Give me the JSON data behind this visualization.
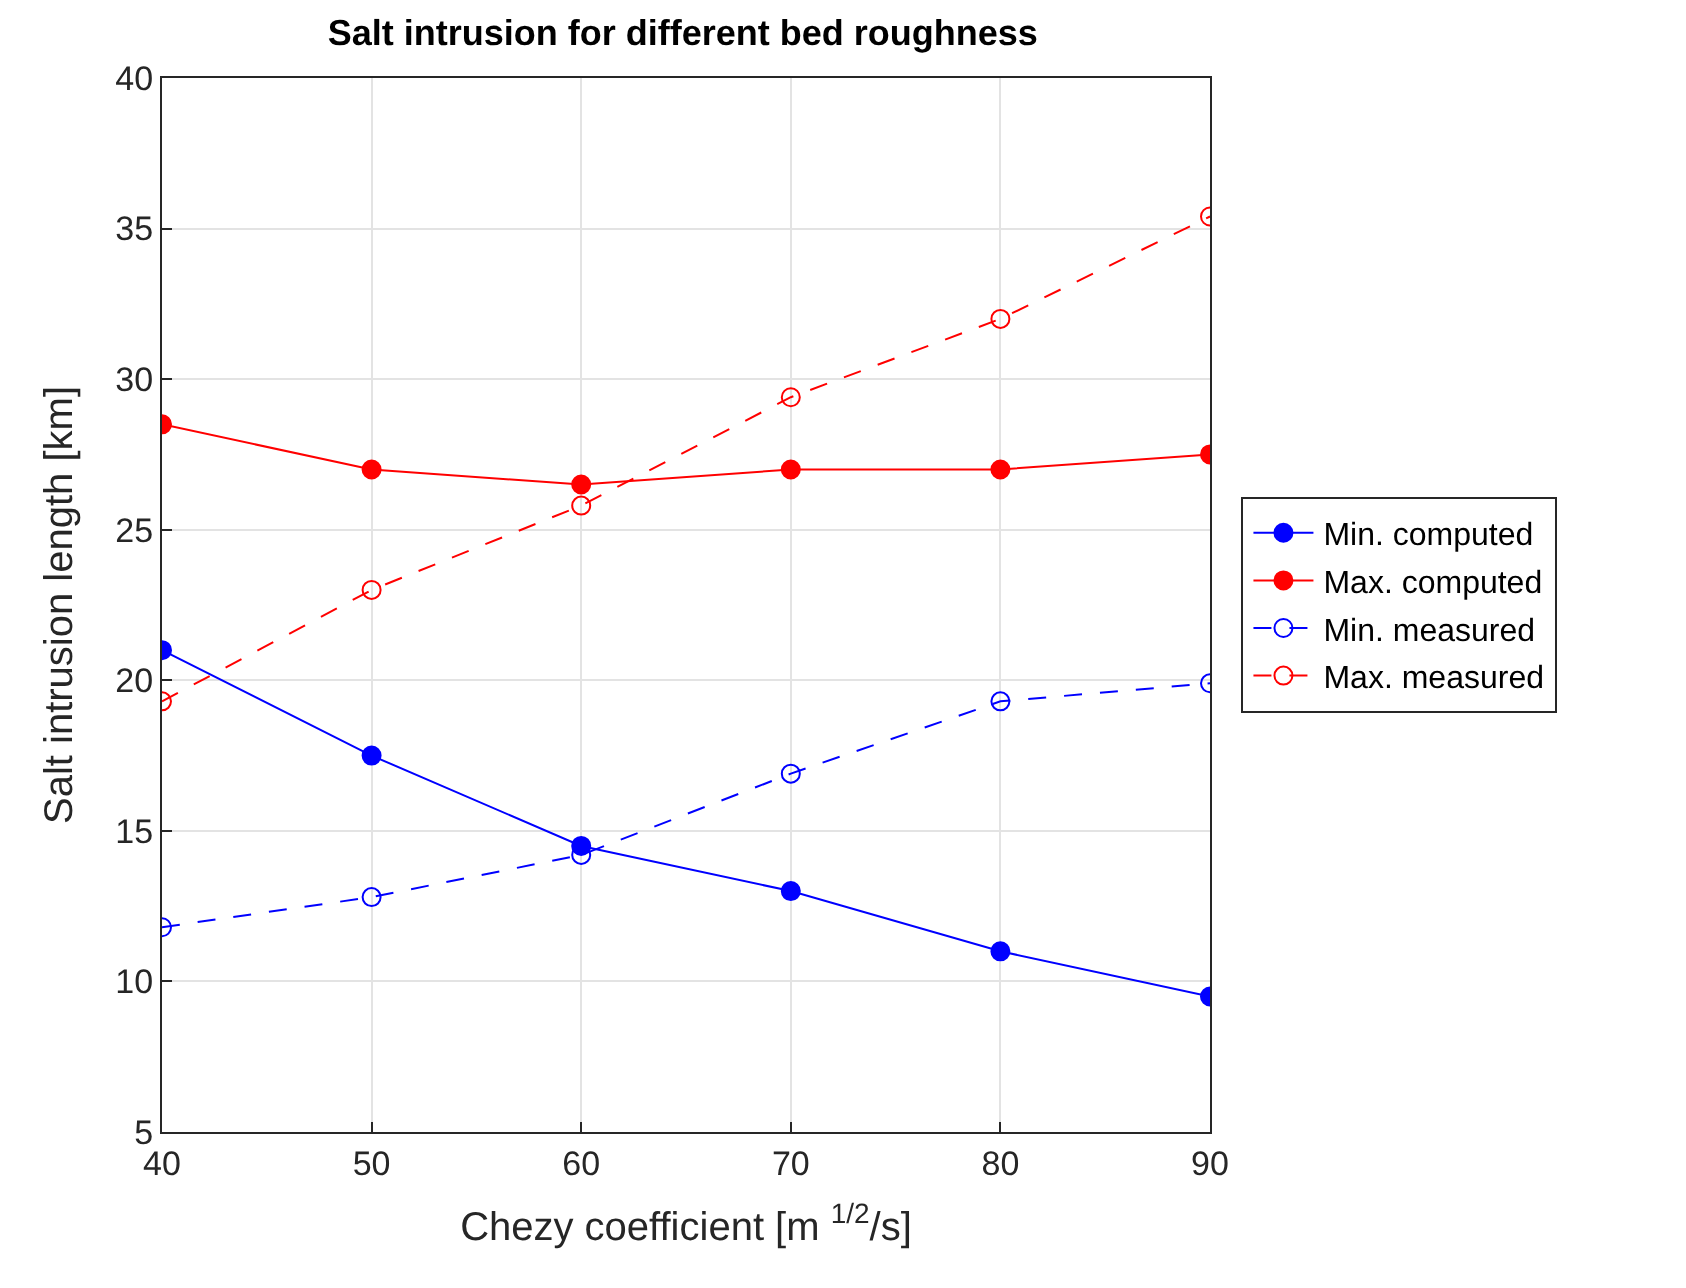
{
  "chart_data": {
    "type": "line",
    "title": "Salt intrusion for different bed roughness",
    "xlabel": "Chezy coefficient [m $^{1/2}$/s]",
    "ylabel": "Salt intrusion length [km]",
    "x": [
      40,
      50,
      60,
      70,
      80,
      90
    ],
    "series": [
      {
        "name": "Min. computed",
        "color": "#0000ff",
        "line_style": "solid",
        "values": [
          21,
          17.5,
          14.5,
          13,
          11,
          9.5
        ]
      },
      {
        "name": "Max. computed",
        "color": "#ff0000",
        "line_style": "solid",
        "values": [
          28.5,
          27,
          26.5,
          27,
          27,
          27.5
        ]
      },
      {
        "name": "Min. measured",
        "color": "#0000ff",
        "line_style": "dashed",
        "values": [
          11.8,
          12.8,
          14.2,
          16.9,
          19.3,
          19.9
        ]
      },
      {
        "name": "Max. measured",
        "color": "#ff0000",
        "line_style": "dashed",
        "values": [
          19.3,
          23.0,
          25.8,
          29.4,
          32.0,
          35.4
        ]
      }
    ],
    "xlim": [
      40,
      90
    ],
    "xticks": [
      40,
      50,
      60,
      70,
      80,
      90
    ],
    "ylim": [
      5,
      40
    ],
    "yticks": [
      5,
      10,
      15,
      20,
      25,
      30,
      35,
      40
    ],
    "grid": true,
    "legend": "right",
    "marker": "circle"
  }
}
